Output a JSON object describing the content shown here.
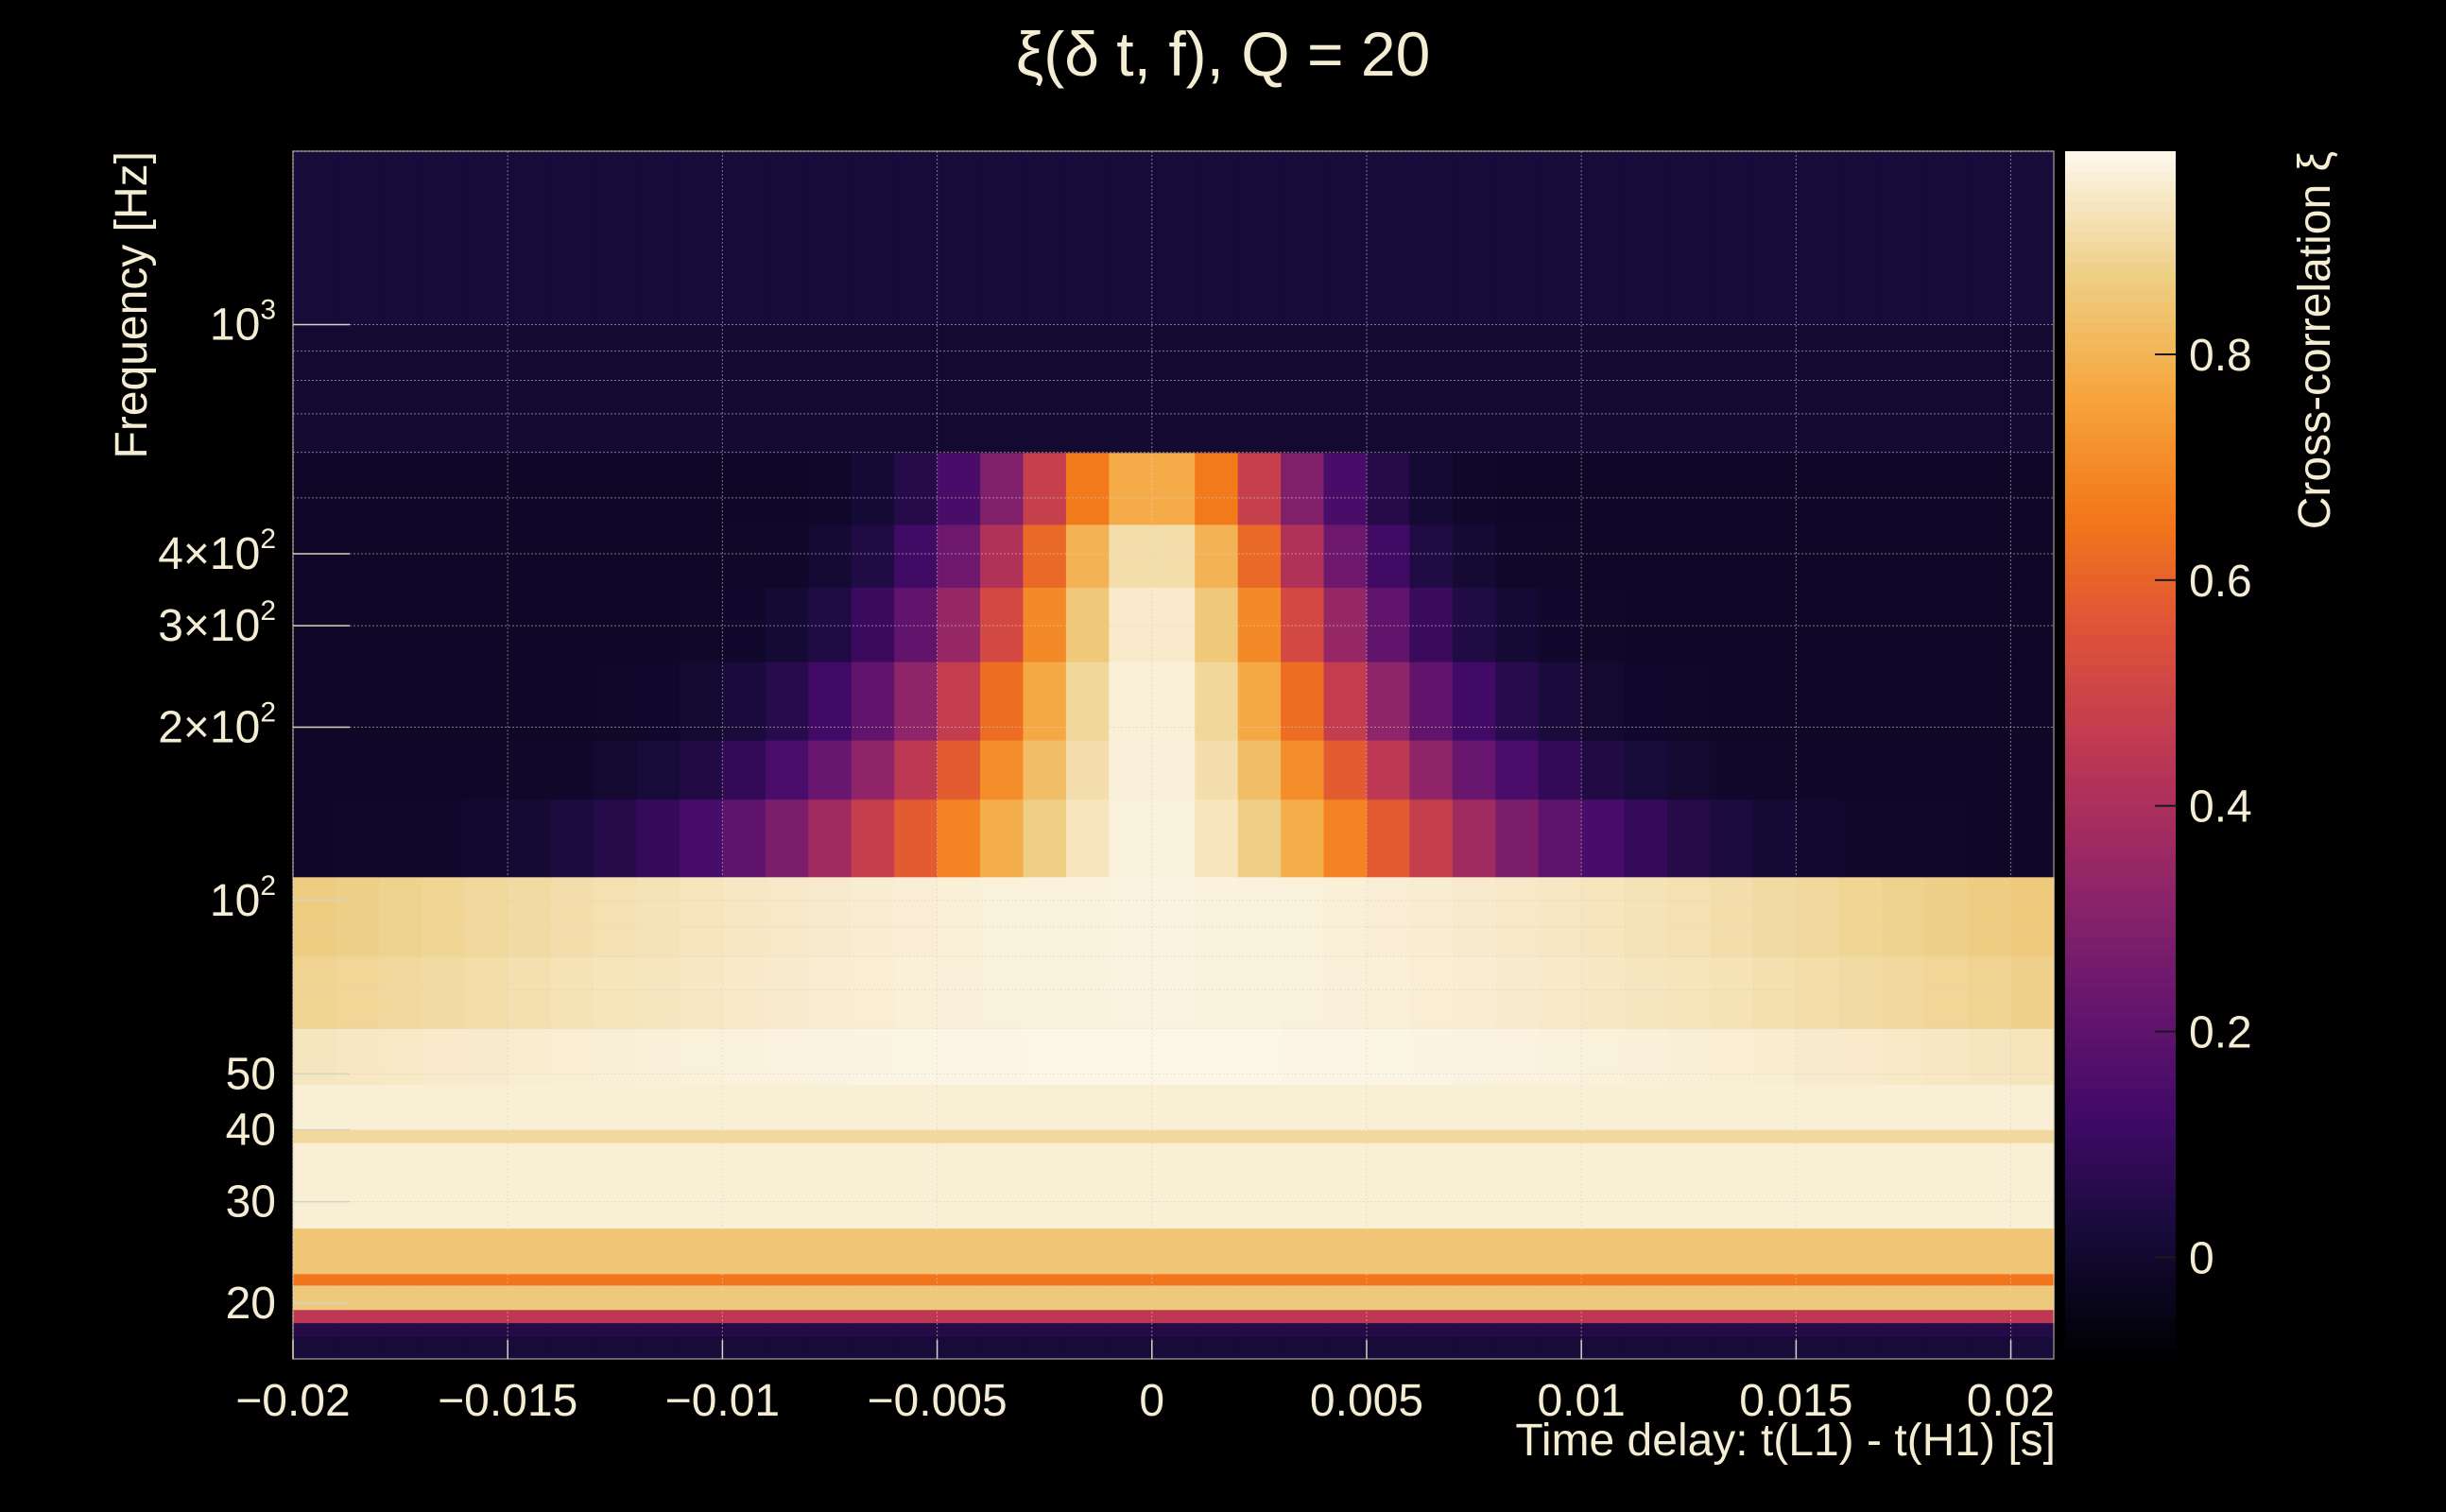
{
  "chart_data": {
    "type": "heatmap",
    "title": "ξ(δ t, f), Q = 20",
    "xlabel": "Time delay: t(L1) - t(H1) [s]",
    "ylabel": "Frequency [Hz]",
    "zlabel": "Cross-correlation ξ",
    "xlim": [
      -0.02,
      0.021
    ],
    "ylim": [
      16,
      2000
    ],
    "zlim": [
      -0.09,
      0.98
    ],
    "yscale": "log",
    "colormap": "inferno",
    "grid": true,
    "x_ticks": [
      {
        "value": -0.02,
        "label": "−0.02"
      },
      {
        "value": -0.015,
        "label": "−0.015"
      },
      {
        "value": -0.01,
        "label": "−0.01"
      },
      {
        "value": -0.005,
        "label": "−0.005"
      },
      {
        "value": 0,
        "label": "0"
      },
      {
        "value": 0.005,
        "label": "0.005"
      },
      {
        "value": 0.01,
        "label": "0.01"
      },
      {
        "value": 0.015,
        "label": "0.015"
      },
      {
        "value": 0.02,
        "label": "0.02"
      }
    ],
    "y_ticks": [
      {
        "value": 20,
        "base": "20",
        "exp": ""
      },
      {
        "value": 30,
        "base": "30",
        "exp": ""
      },
      {
        "value": 40,
        "base": "40",
        "exp": ""
      },
      {
        "value": 50,
        "base": "50",
        "exp": ""
      },
      {
        "value": 100,
        "base": "10",
        "exp": "2"
      },
      {
        "value": 200,
        "base": "2×10",
        "exp": "2"
      },
      {
        "value": 300,
        "base": "3×10",
        "exp": "2"
      },
      {
        "value": 400,
        "base": "4×10",
        "exp": "2"
      },
      {
        "value": 1000,
        "base": "10",
        "exp": "3"
      }
    ],
    "z_ticks": [
      {
        "value": 0,
        "label": "0"
      },
      {
        "value": 0.2,
        "label": "0.2"
      },
      {
        "value": 0.4,
        "label": "0.4"
      },
      {
        "value": 0.6,
        "label": "0.6"
      },
      {
        "value": 0.8,
        "label": "0.8"
      }
    ],
    "time_bins": 41,
    "freq_bands": [
      {
        "f_low": 16,
        "f_high": 17.5,
        "value": 0.02,
        "width": 0
      },
      {
        "f_low": 17.5,
        "f_high": 18.5,
        "value": 0.05,
        "width": 0
      },
      {
        "f_low": 18.5,
        "f_high": 19.5,
        "value": 0.45,
        "width": 0
      },
      {
        "f_low": 19.5,
        "f_high": 21.5,
        "value": 0.86,
        "width": 0
      },
      {
        "f_low": 21.5,
        "f_high": 22.5,
        "value": 0.65,
        "width": 0
      },
      {
        "f_low": 22.5,
        "f_high": 27,
        "value": 0.85,
        "width": 0
      },
      {
        "f_low": 27,
        "f_high": 38,
        "value": 0.96,
        "width": 0
      },
      {
        "f_low": 38,
        "f_high": 40,
        "value": 0.9,
        "width": 0
      },
      {
        "f_low": 40,
        "f_high": 48,
        "value": 0.96,
        "width": 0
      },
      {
        "f_low": 48,
        "f_high": 60,
        "value": 0.98,
        "width": 0.012
      },
      {
        "f_low": 60,
        "f_high": 80,
        "value": 0.97,
        "width": 0.008
      },
      {
        "f_low": 80,
        "f_high": 110,
        "value": 0.97,
        "width": 0.007
      },
      {
        "f_low": 110,
        "f_high": 150,
        "value": 0.97,
        "width": 0.0055
      },
      {
        "f_low": 150,
        "f_high": 190,
        "value": 0.97,
        "width": 0.0045
      },
      {
        "f_low": 190,
        "f_high": 260,
        "value": 0.97,
        "width": 0.0038
      },
      {
        "f_low": 260,
        "f_high": 350,
        "value": 0.96,
        "width": 0.0032
      },
      {
        "f_low": 350,
        "f_high": 450,
        "value": 0.93,
        "width": 0.0028
      },
      {
        "f_low": 450,
        "f_high": 600,
        "value": 0.8,
        "width": 0.0025
      },
      {
        "f_low": 600,
        "f_high": 1000,
        "value": 0.0,
        "width": 0
      },
      {
        "f_low": 1000,
        "f_high": 2000,
        "value": 0.02,
        "width": 0
      }
    ]
  }
}
